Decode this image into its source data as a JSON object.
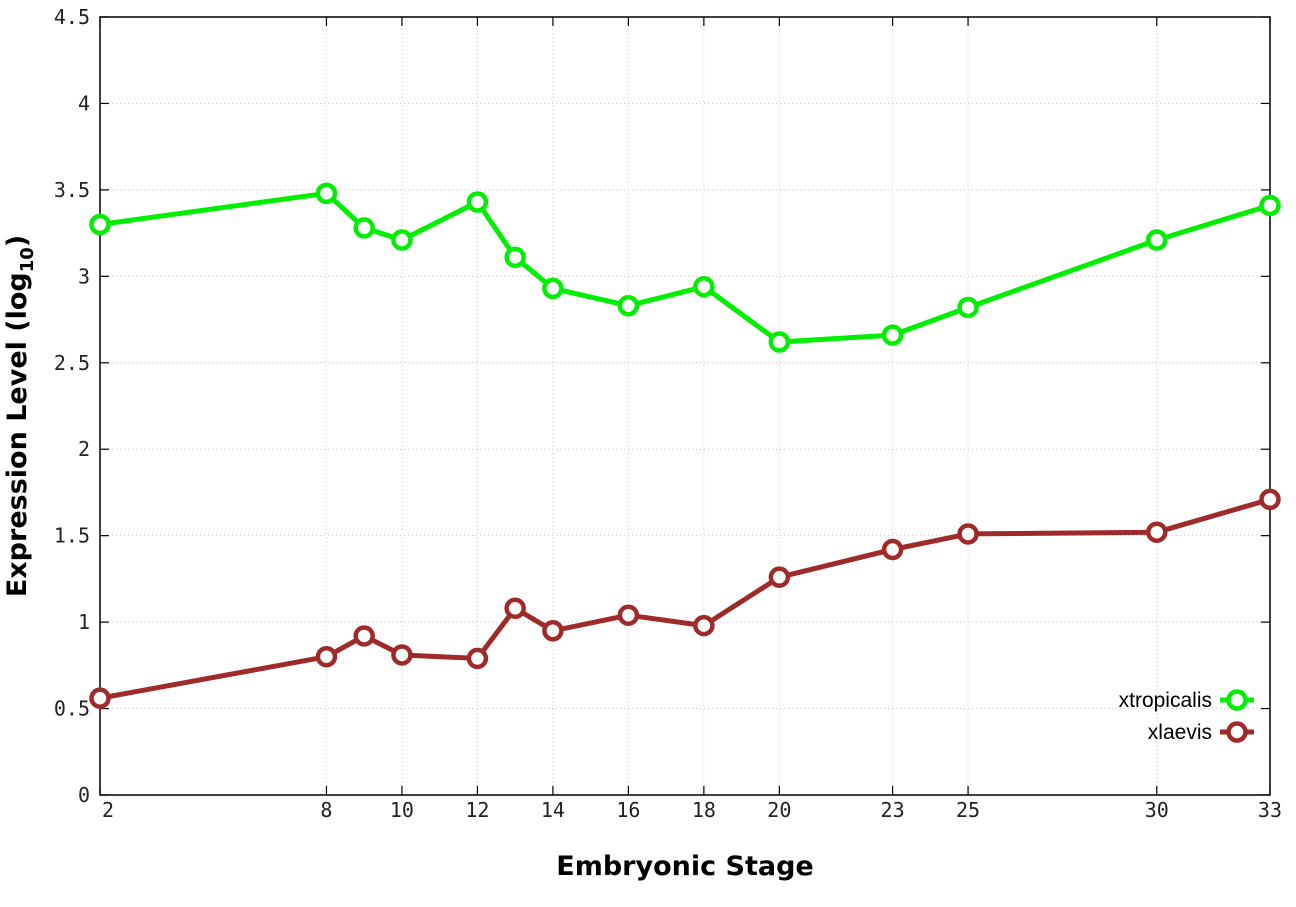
{
  "chart_data": {
    "type": "line",
    "xlabel": "Embryonic Stage",
    "ylabel_main": "Expression Level (log",
    "ylabel_sub": "10",
    "ylabel_close": ")",
    "xlim": [
      2,
      33
    ],
    "ylim": [
      0,
      4.5
    ],
    "x_ticks": [
      2,
      8,
      10,
      12,
      14,
      16,
      18,
      20,
      23,
      25,
      30,
      33
    ],
    "y_ticks": [
      0,
      0.5,
      1,
      1.5,
      2,
      2.5,
      3,
      3.5,
      4,
      4.5
    ],
    "y_tick_labels": [
      "0",
      "0.5",
      "1",
      "1.5",
      "2",
      "2.5",
      "3",
      "3.5",
      "4",
      "4.5"
    ],
    "grid": true,
    "legend_position": "bottom-right",
    "x": [
      2,
      8,
      9,
      10,
      12,
      13,
      14,
      16,
      18,
      20,
      23,
      25,
      30,
      33
    ],
    "series": [
      {
        "name": "xtropicalis",
        "color": "#00ee00",
        "values": [
          3.3,
          3.48,
          3.28,
          3.21,
          3.43,
          3.11,
          2.93,
          2.83,
          2.94,
          2.62,
          2.66,
          2.82,
          3.21,
          3.41
        ]
      },
      {
        "name": "xlaevis",
        "color": "#9e2a2a",
        "values": [
          0.56,
          0.8,
          0.92,
          0.81,
          0.79,
          1.08,
          0.95,
          1.04,
          0.98,
          1.26,
          1.42,
          1.51,
          1.52,
          1.71
        ]
      }
    ]
  }
}
